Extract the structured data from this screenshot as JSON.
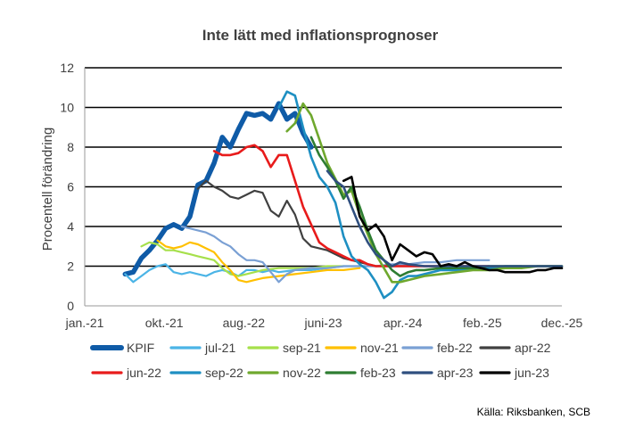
{
  "chart_data": {
    "type": "line",
    "title": "Inte lätt med inflationsprognoser",
    "xlabel": "",
    "ylabel": "Procentell förändring",
    "source": "Källa: Riksbanken, SCB",
    "x_ticks": [
      "jan.-21",
      "okt.-21",
      "aug.-22",
      "juni-23",
      "apr.-24",
      "feb.-25",
      "dec.-25"
    ],
    "y_ticks": [
      "0",
      "2",
      "4",
      "6",
      "8",
      "10",
      "12"
    ],
    "ylim": [
      0,
      12
    ],
    "xlim_months": [
      0,
      59
    ],
    "x_unit": "months since jan-21",
    "grid": true,
    "legend_position": "bottom",
    "series": [
      {
        "name": "KPIF",
        "color": "#0F5BA7",
        "width": 5.5,
        "x": [
          5,
          6,
          7,
          8,
          9,
          10,
          11,
          12,
          13,
          14,
          15,
          16,
          17,
          18,
          19,
          20,
          21,
          22,
          23,
          24,
          25,
          26,
          27,
          28
        ],
        "y": [
          1.6,
          1.7,
          2.4,
          2.8,
          3.3,
          3.9,
          4.1,
          3.9,
          4.5,
          6.1,
          6.3,
          7.2,
          8.5,
          8.0,
          8.9,
          9.7,
          9.6,
          9.7,
          9.4,
          10.2,
          9.4,
          9.7,
          8.7,
          8.0
        ]
      },
      {
        "name": "jul-21",
        "color": "#4BB4E6",
        "width": 2.2,
        "x": [
          5,
          6,
          7,
          8,
          9,
          10,
          11,
          12,
          13,
          14,
          15,
          16,
          17,
          18,
          19,
          20,
          21,
          22,
          23,
          24,
          26,
          28,
          30,
          32,
          34,
          36
        ],
        "y": [
          1.6,
          1.2,
          1.5,
          1.8,
          2.0,
          2.1,
          1.7,
          1.6,
          1.7,
          1.6,
          1.5,
          1.7,
          1.8,
          1.7,
          1.5,
          1.8,
          1.8,
          1.7,
          1.8,
          1.7,
          1.8,
          1.8,
          1.9,
          2.0,
          2.0,
          2.0
        ]
      },
      {
        "name": "sep-21",
        "color": "#A6E04B",
        "width": 2.2,
        "x": [
          7,
          8,
          9,
          10,
          11,
          12,
          13,
          14,
          15,
          16,
          17,
          18,
          19,
          20,
          21,
          22,
          24,
          26,
          28,
          30,
          32
        ],
        "y": [
          3.0,
          3.2,
          3.1,
          2.8,
          2.8,
          2.7,
          2.6,
          2.5,
          2.4,
          2.3,
          1.9,
          1.6,
          1.5,
          1.6,
          1.7,
          1.8,
          1.9,
          1.9,
          1.9,
          2.0,
          2.0
        ]
      },
      {
        "name": "nov-21",
        "color": "#FFC000",
        "width": 2.2,
        "x": [
          9,
          10,
          11,
          12,
          13,
          14,
          15,
          16,
          17,
          18,
          19,
          20,
          21,
          22,
          24,
          26,
          28,
          30,
          32,
          34
        ],
        "y": [
          3.3,
          3.0,
          2.9,
          3.0,
          3.2,
          3.1,
          2.9,
          2.7,
          2.2,
          1.8,
          1.3,
          1.2,
          1.3,
          1.4,
          1.5,
          1.6,
          1.7,
          1.8,
          1.8,
          1.9
        ]
      },
      {
        "name": "feb-22",
        "color": "#7AA0D4",
        "width": 2.2,
        "x": [
          12,
          13,
          14,
          15,
          16,
          17,
          18,
          19,
          20,
          21,
          22,
          23,
          24,
          25,
          26,
          28,
          30,
          32,
          34,
          36,
          38,
          40,
          42,
          44,
          46,
          48,
          50
        ],
        "y": [
          4.0,
          3.9,
          3.8,
          3.7,
          3.5,
          3.2,
          3.0,
          2.6,
          2.3,
          2.3,
          2.2,
          1.7,
          1.2,
          1.6,
          1.8,
          1.9,
          1.9,
          2.0,
          2.0,
          2.0,
          2.1,
          2.1,
          2.2,
          2.2,
          2.3,
          2.3,
          2.3
        ]
      },
      {
        "name": "apr-22",
        "color": "#404040",
        "width": 2.2,
        "x": [
          14,
          15,
          16,
          17,
          18,
          19,
          20,
          21,
          22,
          23,
          24,
          25,
          26,
          27,
          28,
          30,
          32,
          34,
          36,
          38,
          40,
          42,
          44,
          46,
          48,
          50
        ],
        "y": [
          5.9,
          6.3,
          6.0,
          5.8,
          5.5,
          5.4,
          5.6,
          5.8,
          5.7,
          4.8,
          4.5,
          5.3,
          4.6,
          3.4,
          3.0,
          2.8,
          2.4,
          2.2,
          2.0,
          2.0,
          2.0,
          2.0,
          2.0,
          2.0,
          2.0,
          2.0
        ]
      },
      {
        "name": "jun-22",
        "color": "#E81B1B",
        "width": 2.6,
        "x": [
          16,
          17,
          18,
          19,
          20,
          21,
          22,
          23,
          24,
          25,
          26,
          27,
          28,
          29,
          30,
          31,
          32,
          33,
          34,
          35,
          36,
          38,
          40,
          42,
          44,
          46,
          48,
          50
        ],
        "y": [
          7.8,
          7.6,
          7.6,
          7.7,
          8.0,
          8.1,
          7.8,
          7.0,
          7.6,
          7.6,
          6.3,
          5.0,
          4.1,
          3.2,
          2.9,
          2.7,
          2.5,
          2.3,
          2.3,
          2.1,
          2.0,
          2.0,
          2.0,
          2.0,
          2.0,
          2.0,
          2.0,
          2.0
        ]
      },
      {
        "name": "sep-22",
        "color": "#1E8FC2",
        "width": 2.6,
        "x": [
          24,
          25,
          26,
          27,
          28,
          29,
          30,
          31,
          32,
          33,
          34,
          35,
          36,
          37,
          38,
          39,
          40,
          41,
          42,
          43,
          44,
          46,
          48,
          50,
          52,
          54
        ],
        "y": [
          10.0,
          10.8,
          10.6,
          9.0,
          7.5,
          6.5,
          6.0,
          5.2,
          3.5,
          2.5,
          2.1,
          1.8,
          1.2,
          0.4,
          0.7,
          1.3,
          1.5,
          1.5,
          1.6,
          1.7,
          1.8,
          1.8,
          1.9,
          1.9,
          2.0,
          2.0
        ]
      },
      {
        "name": "nov-22",
        "color": "#6FA82E",
        "width": 2.6,
        "x": [
          25,
          26,
          27,
          28,
          29,
          30,
          31,
          32,
          33,
          34,
          35,
          36,
          37,
          38,
          39,
          40,
          41,
          42,
          44,
          46,
          48,
          50,
          52,
          54,
          56,
          59
        ],
        "y": [
          8.8,
          9.2,
          10.2,
          9.6,
          8.4,
          7.2,
          6.4,
          5.6,
          5.8,
          4.6,
          3.6,
          2.6,
          1.9,
          1.2,
          1.2,
          1.3,
          1.4,
          1.5,
          1.6,
          1.7,
          1.8,
          1.8,
          1.9,
          1.9,
          2.0,
          2.0
        ]
      },
      {
        "name": "feb-23",
        "color": "#2E7D32",
        "width": 2.6,
        "x": [
          28,
          29,
          30,
          31,
          32,
          33,
          34,
          35,
          36,
          37,
          38,
          39,
          40,
          41,
          42,
          44,
          46,
          48,
          50,
          52,
          54,
          56,
          59
        ],
        "y": [
          8.5,
          7.6,
          7.0,
          6.3,
          5.4,
          6.0,
          5.0,
          3.8,
          2.8,
          2.3,
          1.8,
          1.5,
          1.7,
          1.8,
          1.8,
          1.9,
          1.9,
          1.9,
          2.0,
          2.0,
          2.0,
          2.0,
          2.0
        ]
      },
      {
        "name": "apr-23",
        "color": "#2F4F7F",
        "width": 2.6,
        "x": [
          30,
          31,
          32,
          33,
          34,
          35,
          36,
          37,
          38,
          39,
          40,
          42,
          44,
          46,
          48,
          50,
          52,
          54,
          56,
          59
        ],
        "y": [
          6.8,
          6.3,
          6.0,
          5.0,
          4.0,
          3.2,
          2.6,
          2.3,
          2.0,
          2.2,
          2.1,
          2.0,
          2.0,
          2.0,
          2.0,
          2.0,
          2.0,
          2.0,
          2.0,
          2.0
        ]
      },
      {
        "name": "jun-23",
        "color": "#000000",
        "width": 2.6,
        "x": [
          32,
          33,
          34,
          35,
          36,
          37,
          38,
          39,
          40,
          41,
          42,
          43,
          44,
          45,
          46,
          47,
          48,
          49,
          50,
          51,
          52,
          53,
          54,
          55,
          56,
          57,
          58,
          59
        ],
        "y": [
          6.3,
          6.5,
          4.5,
          3.8,
          4.1,
          3.5,
          2.3,
          3.1,
          2.8,
          2.5,
          2.7,
          2.6,
          2.0,
          2.1,
          2.0,
          2.2,
          2.0,
          1.9,
          1.8,
          1.8,
          1.7,
          1.7,
          1.7,
          1.7,
          1.8,
          1.8,
          1.9,
          1.9
        ]
      }
    ]
  }
}
